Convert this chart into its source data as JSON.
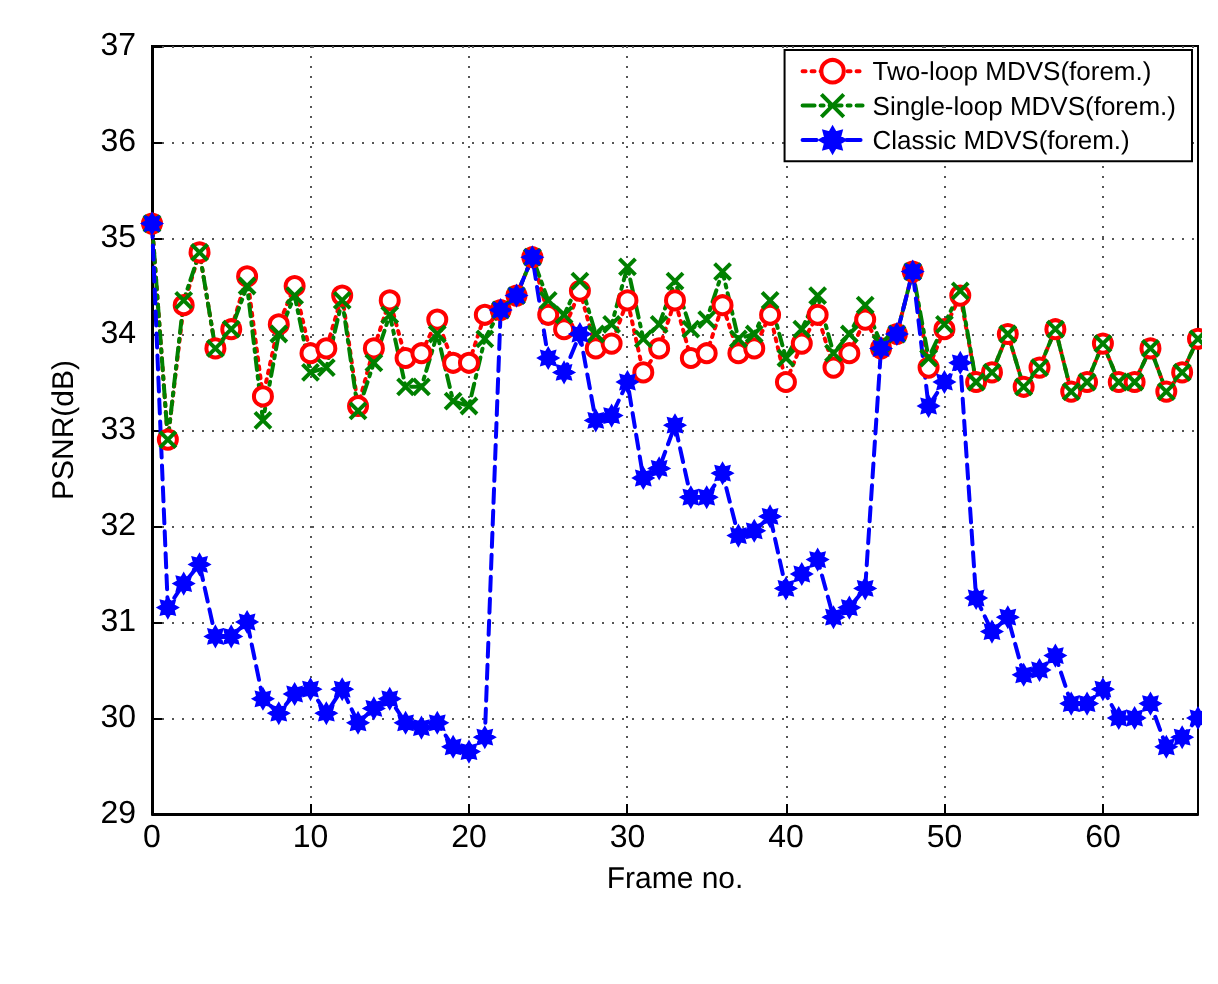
{
  "chart_data": {
    "type": "line",
    "xlabel": "Frame no.",
    "ylabel": "PSNR(dB)",
    "xlim": [
      0,
      66
    ],
    "xticks": [
      0,
      10,
      20,
      30,
      40,
      50,
      60
    ],
    "ylim": [
      29,
      37
    ],
    "yticks": [
      29,
      30,
      31,
      32,
      33,
      34,
      35,
      36,
      37
    ],
    "grid": true,
    "legend": "top right",
    "x": [
      0,
      1,
      2,
      3,
      4,
      5,
      6,
      7,
      8,
      9,
      10,
      11,
      12,
      13,
      14,
      15,
      16,
      17,
      18,
      19,
      20,
      21,
      22,
      23,
      24,
      25,
      26,
      27,
      28,
      29,
      30,
      31,
      32,
      33,
      34,
      35,
      36,
      37,
      38,
      39,
      40,
      41,
      42,
      43,
      44,
      45,
      46,
      47,
      48,
      49,
      50,
      51,
      52,
      53,
      54,
      55,
      56,
      57,
      58,
      59,
      60,
      61,
      62,
      63,
      64,
      65,
      66
    ],
    "series": [
      {
        "name": "Two-loop MDVS(forem.)",
        "color": "#ff0000",
        "marker": "circle",
        "line_style": "dotted",
        "values": [
          35.15,
          32.9,
          34.3,
          34.85,
          33.85,
          34.05,
          34.6,
          33.35,
          34.1,
          34.5,
          33.8,
          33.85,
          34.4,
          33.25,
          33.85,
          34.35,
          33.75,
          33.8,
          34.15,
          33.7,
          33.7,
          34.2,
          34.25,
          34.4,
          34.8,
          34.2,
          34.05,
          34.45,
          33.85,
          33.9,
          34.35,
          33.6,
          33.85,
          34.35,
          33.75,
          33.8,
          34.3,
          33.8,
          33.85,
          34.2,
          33.5,
          33.9,
          34.2,
          33.65,
          33.8,
          34.15,
          33.85,
          34.0,
          34.65,
          33.65,
          34.05,
          34.4,
          33.5,
          33.6,
          34.0,
          33.45,
          33.65,
          34.05,
          33.4,
          33.5,
          33.9,
          33.5,
          33.5,
          33.85,
          33.4,
          33.6,
          33.95
        ]
      },
      {
        "name": "Single-loop MDVS(forem.)",
        "color": "#008000",
        "marker": "cross",
        "line_style": "dashdot",
        "values": [
          35.15,
          32.9,
          34.35,
          34.85,
          33.85,
          34.05,
          34.5,
          33.1,
          34.0,
          34.4,
          33.6,
          33.65,
          34.35,
          33.2,
          33.7,
          34.2,
          33.45,
          33.45,
          34.0,
          33.3,
          33.25,
          33.95,
          34.25,
          34.4,
          34.8,
          34.35,
          34.2,
          34.55,
          34.0,
          34.1,
          34.7,
          33.95,
          34.1,
          34.55,
          34.05,
          34.15,
          34.65,
          33.95,
          34.0,
          34.35,
          33.75,
          34.05,
          34.4,
          33.8,
          34.0,
          34.3,
          33.9,
          34.0,
          34.65,
          33.75,
          34.1,
          34.45,
          33.5,
          33.6,
          34.0,
          33.45,
          33.65,
          34.05,
          33.4,
          33.5,
          33.9,
          33.5,
          33.5,
          33.85,
          33.4,
          33.6,
          33.95
        ]
      },
      {
        "name": "Classic MDVS(forem.)",
        "color": "#0000ff",
        "marker": "star",
        "line_style": "dashed",
        "values": [
          35.15,
          31.15,
          31.4,
          31.6,
          30.85,
          30.85,
          31.0,
          30.2,
          30.05,
          30.25,
          30.3,
          30.05,
          30.3,
          29.95,
          30.1,
          30.2,
          29.95,
          29.9,
          29.95,
          29.7,
          29.65,
          29.8,
          34.25,
          34.4,
          34.8,
          33.75,
          33.6,
          34.0,
          33.1,
          33.15,
          33.5,
          32.5,
          32.6,
          33.05,
          32.3,
          32.3,
          32.55,
          31.9,
          31.95,
          32.1,
          31.35,
          31.5,
          31.65,
          31.05,
          31.15,
          31.35,
          33.85,
          34.0,
          34.65,
          33.25,
          33.5,
          33.7,
          31.25,
          30.9,
          31.05,
          30.45,
          30.5,
          30.65,
          30.15,
          30.15,
          30.3,
          30.0,
          30.0,
          30.15,
          29.7,
          29.8,
          30.0
        ]
      }
    ]
  }
}
